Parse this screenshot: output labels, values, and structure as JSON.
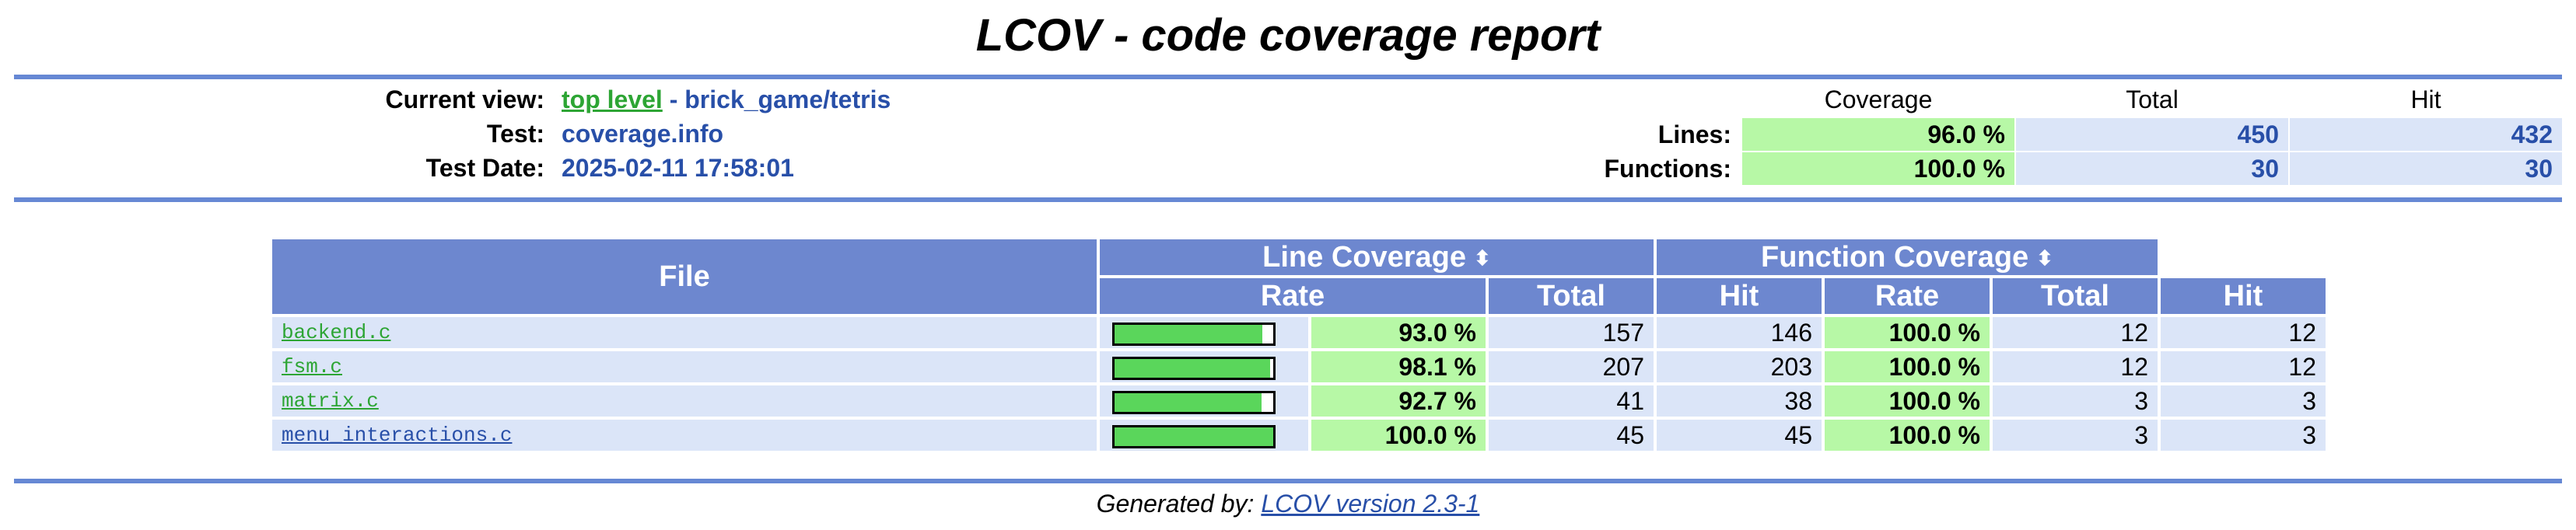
{
  "title": "LCOV - code coverage report",
  "header": {
    "current_view_label": "Current view:",
    "current_view_link": "top level",
    "current_view_sep": " - ",
    "current_view_path": "brick_game/tetris",
    "test_label": "Test:",
    "test_value": "coverage.info",
    "test_date_label": "Test Date:",
    "test_date_value": "2025-02-11 17:58:01"
  },
  "summary": {
    "col_coverage": "Coverage",
    "col_total": "Total",
    "col_hit": "Hit",
    "lines_label": "Lines:",
    "lines_rate": "96.0 %",
    "lines_total": "450",
    "lines_hit": "432",
    "functions_label": "Functions:",
    "functions_rate": "100.0 %",
    "functions_total": "30",
    "functions_hit": "30"
  },
  "table": {
    "file_header": "File",
    "line_cov_header": "Line Coverage",
    "func_cov_header": "Function Coverage",
    "rate": "Rate",
    "total": "Total",
    "hit": "Hit",
    "sort_icon": "⬍",
    "rows": [
      {
        "file": "backend.c",
        "line_rate": "93.0 %",
        "line_pct": 93.0,
        "line_total": "157",
        "line_hit": "146",
        "func_rate": "100.0 %",
        "func_total": "12",
        "func_hit": "12"
      },
      {
        "file": "fsm.c",
        "line_rate": "98.1 %",
        "line_pct": 98.1,
        "line_total": "207",
        "line_hit": "203",
        "func_rate": "100.0 %",
        "func_total": "12",
        "func_hit": "12"
      },
      {
        "file": "matrix.c",
        "line_rate": "92.7 %",
        "line_pct": 92.7,
        "line_total": "41",
        "line_hit": "38",
        "func_rate": "100.0 %",
        "func_total": "3",
        "func_hit": "3"
      },
      {
        "file": "menu_interactions.c",
        "line_rate": "100.0 %",
        "line_pct": 100.0,
        "line_total": "45",
        "line_hit": "45",
        "func_rate": "100.0 %",
        "func_total": "3",
        "func_hit": "3"
      }
    ]
  },
  "footer": {
    "prefix": "Generated by: ",
    "link": "LCOV version 2.3-1"
  }
}
